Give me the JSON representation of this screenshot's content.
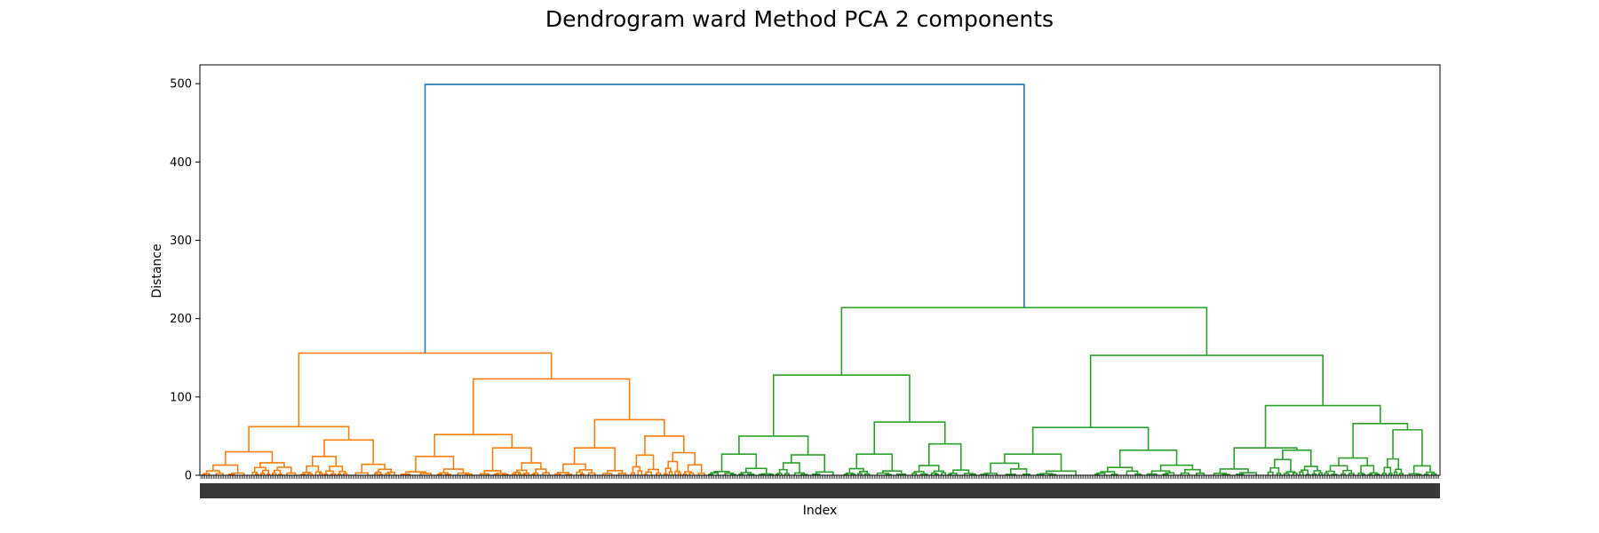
{
  "chart_data": {
    "type": "dendrogram",
    "title": "Dendrogram ward Method PCA 2 components",
    "xlabel": "Index",
    "ylabel": "Distance",
    "ylim": [
      0,
      524
    ],
    "yticks": [
      0,
      100,
      200,
      300,
      400,
      500
    ],
    "grid": false,
    "colors": {
      "link_top": "#1f77b4",
      "cluster_1": "#ff7f0e",
      "cluster_2": "#2ca02c"
    },
    "root_merge_height": 499,
    "cluster_1": {
      "color": "#ff7f0e",
      "merge_height": 156,
      "left": {
        "height": 62,
        "children": [
          {
            "height": 30,
            "children": [
              13,
              16
            ]
          },
          {
            "height": 45,
            "children": [
              24,
              14
            ]
          }
        ]
      },
      "right": {
        "height": 123,
        "children": [
          {
            "height": 52,
            "children": [
              24,
              35
            ]
          },
          {
            "height": 71,
            "children": [
              35,
              50
            ]
          }
        ]
      }
    },
    "cluster_2": {
      "color": "#2ca02c",
      "merge_height": 214,
      "left": {
        "height": 128,
        "children": [
          {
            "height": 50,
            "children": [
              27,
              26
            ]
          },
          {
            "height": 68,
            "children": [
              27,
              40
            ]
          }
        ]
      },
      "right": {
        "height": 153,
        "children": [
          {
            "height": 61,
            "children": [
              27,
              32
            ]
          },
          {
            "height": 89,
            "children": [
              {
                "height": 35,
                "children": [
                  8,
                  32
                ]
              },
              {
                "height": 66,
                "children": [
                  22,
                  58
                ]
              }
            ]
          }
        ]
      }
    }
  }
}
